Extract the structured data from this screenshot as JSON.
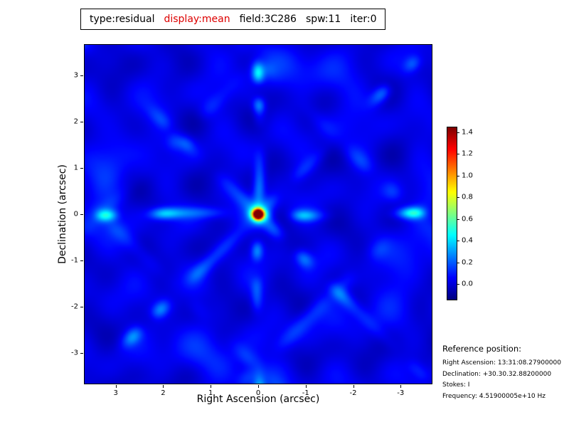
{
  "title": {
    "type_label": "type:residual",
    "display_label": "display:mean",
    "field_label": "field:3C286",
    "spw_label": "spw:11",
    "iter_label": "iter:0",
    "display_color": "#dd0000"
  },
  "axes": {
    "xlabel": "Right Ascension (arcsec)",
    "ylabel": "Declination (arcsec)"
  },
  "reference": {
    "heading": "Reference position:",
    "lines": [
      "Right Ascension: 13:31:08.27900000",
      "Declination: +30.30.32.88200000",
      "Stokes: I",
      "Frequency: 4.51900005e+10 Hz"
    ]
  },
  "chart_data": {
    "type": "heatmap",
    "title": "type:residual display:mean field:3C286 spw:11 iter:0",
    "xlabel": "Right Ascension (arcsec)",
    "ylabel": "Declination (arcsec)",
    "colormap": "jet",
    "x_range": [
      3.67,
      -3.67
    ],
    "y_range": [
      -3.67,
      3.67
    ],
    "x_ticks": [
      {
        "label": "3",
        "value": 3
      },
      {
        "label": "2",
        "value": 2
      },
      {
        "label": "1",
        "value": 1
      },
      {
        "label": "0",
        "value": 0
      },
      {
        "label": "-1",
        "value": -1
      },
      {
        "label": "-2",
        "value": -2
      },
      {
        "label": "-3",
        "value": -3
      }
    ],
    "y_ticks": [
      {
        "label": "3",
        "value": 3
      },
      {
        "label": "2",
        "value": 2
      },
      {
        "label": "1",
        "value": 1
      },
      {
        "label": "0",
        "value": 0
      },
      {
        "label": "-1",
        "value": -1
      },
      {
        "label": "-2",
        "value": -2
      },
      {
        "label": "-3",
        "value": -3
      }
    ],
    "value_range": [
      -0.15,
      1.45
    ],
    "colorbar_ticks": [
      {
        "label": "1.4",
        "value": 1.4
      },
      {
        "label": "1.2",
        "value": 1.2
      },
      {
        "label": "1.0",
        "value": 1.0
      },
      {
        "label": "0.8",
        "value": 0.8
      },
      {
        "label": "0.6",
        "value": 0.6
      },
      {
        "label": "0.4",
        "value": 0.4
      },
      {
        "label": "0.2",
        "value": 0.2
      },
      {
        "label": "0.0",
        "value": 0.0
      }
    ],
    "peak": {
      "ra_arcsec": 0.0,
      "dec_arcsec": 0.0,
      "value": 1.4
    },
    "pattern": "dark blue residual field with mottled noise; beaded cyan sidelobe streaks crossing at origin (horizontal, vertical and diagonal) plus faint outer arcs; compact bright red source at field center"
  }
}
